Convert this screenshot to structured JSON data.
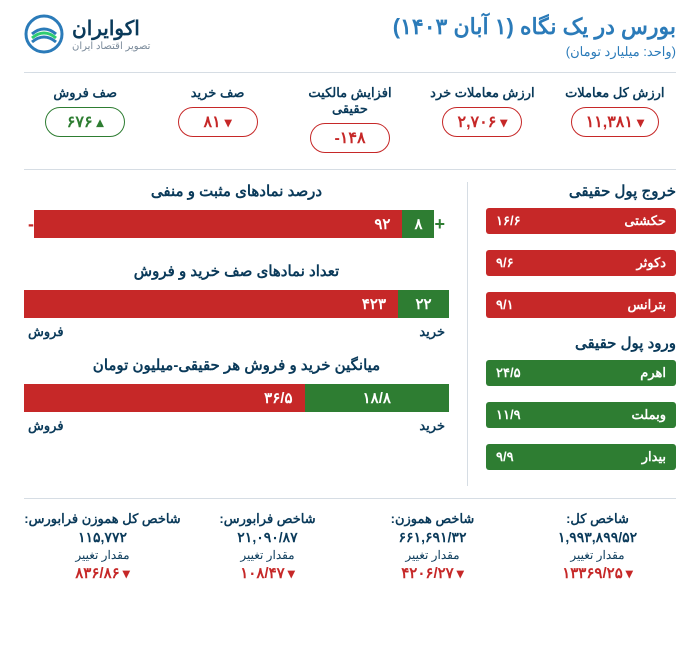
{
  "header": {
    "title": "بورس در یک نگاه (۱ آبان ۱۴۰۳)",
    "unit": "(واحد: میلیارد تومان)",
    "logo_name": "اکوایران",
    "logo_tag": "تصویر اقتصاد ایران"
  },
  "colors": {
    "brand": "#2b7bb9",
    "dark": "#0a3a5a",
    "red": "#c62828",
    "green": "#2e7d32",
    "divider": "#d6dde4",
    "bg": "#ffffff"
  },
  "kpis": [
    {
      "label": "ارزش کل معاملات",
      "value": "۱۱,۳۸۱",
      "color": "#c62828",
      "arrow": "down"
    },
    {
      "label": "ارزش معاملات خرد",
      "value": "۲,۷۰۶",
      "color": "#c62828",
      "arrow": "down"
    },
    {
      "label": "افزایش مالکیت حقیقی",
      "value": "۱۴۸-",
      "color": "#c62828",
      "arrow": "none"
    },
    {
      "label": "صف خرید",
      "value": "۸۱",
      "color": "#c62828",
      "arrow": "down"
    },
    {
      "label": "صف فروش",
      "value": "۶۷۶",
      "color": "#2e7d32",
      "arrow": "up"
    }
  ],
  "outflow": {
    "title": "خروج پول حقیقی",
    "rows": [
      {
        "name": "حکشتی",
        "value": "۱۶/۶"
      },
      {
        "name": "دکوثر",
        "value": "۹/۶"
      },
      {
        "name": "بترانس",
        "value": "۹/۱"
      }
    ]
  },
  "inflow": {
    "title": "ورود پول حقیقی",
    "rows": [
      {
        "name": "اهرم",
        "value": "۲۴/۵"
      },
      {
        "name": "وبملت",
        "value": "۱۱/۹"
      },
      {
        "name": "بیدار",
        "value": "۹/۹"
      }
    ]
  },
  "charts": {
    "pos_neg": {
      "title": "درصد نمادهای مثبت و منفی",
      "neg_pct": 92,
      "pos_pct": 8,
      "neg_label": "۹۲",
      "pos_label": "۸",
      "plus_sign": "+",
      "minus_sign": "-"
    },
    "queue": {
      "title": "تعداد نمادهای صف خرید و فروش",
      "sell_val": 423,
      "buy_val": 22,
      "sell_label": "۴۲۳",
      "buy_label": "۲۲",
      "sell_caption": "فروش",
      "buy_caption": "خرید"
    },
    "avg": {
      "title": "میانگین خرید و فروش هر حقیقی-میلیون تومان",
      "sell_val": 36.5,
      "buy_val": 18.8,
      "sell_label": "۳۶/۵",
      "buy_label": "۱۸/۸",
      "sell_caption": "فروش",
      "buy_caption": "خرید"
    }
  },
  "indices": [
    {
      "label": "شاخص کل:",
      "value": "۱,۹۹۳,۸۹۹/۵۲",
      "change_label": "مقدار تغییر",
      "change": "۱۳۳۶۹/۲۵",
      "color": "#c62828",
      "arrow": "down"
    },
    {
      "label": "شاخص هموزن:",
      "value": "۶۶۱,۶۹۱/۳۲",
      "change_label": "مقدار تغییر",
      "change": "۴۲۰۶/۲۷",
      "color": "#c62828",
      "arrow": "down"
    },
    {
      "label": "شاخص فرابورس:",
      "value": "۲۱,۰۹۰/۸۷",
      "change_label": "مقدار تغییر",
      "change": "۱۰۸/۴۷",
      "color": "#c62828",
      "arrow": "down"
    },
    {
      "label": "شاخص کل هموزن فرابورس:",
      "value": "۱۱۵,۷۷۲",
      "change_label": "مقدار تغییر",
      "change": "۸۳۶/۸۶",
      "color": "#c62828",
      "arrow": "down"
    }
  ]
}
